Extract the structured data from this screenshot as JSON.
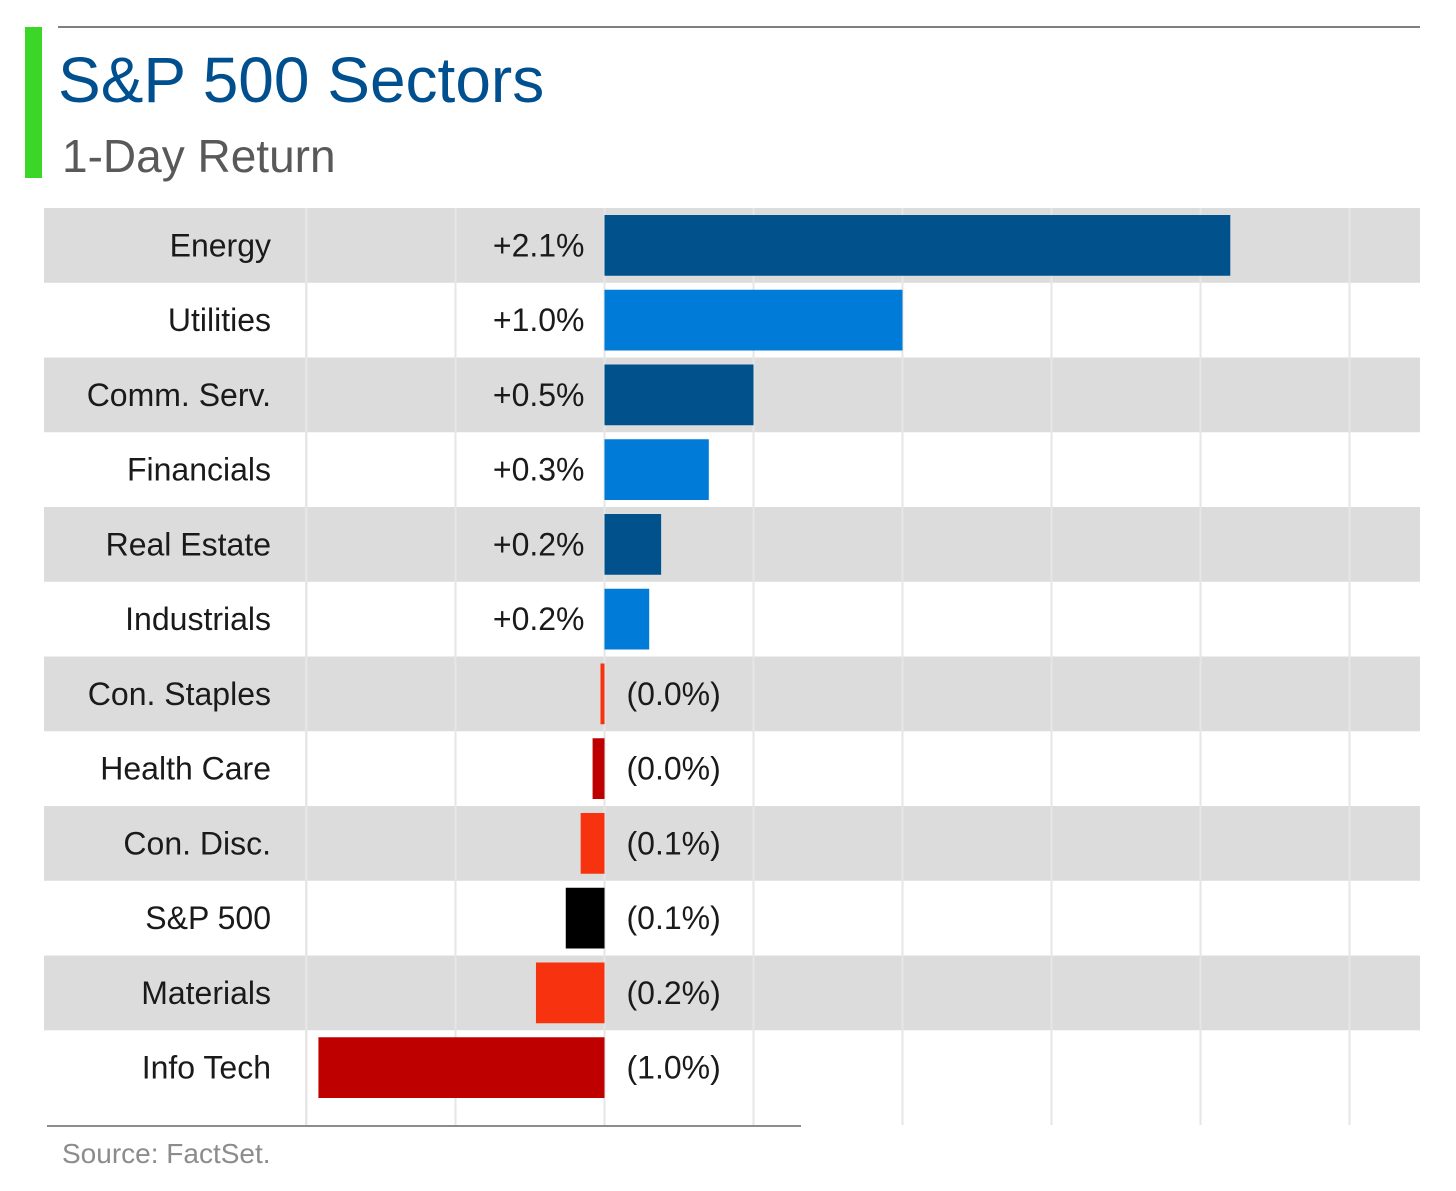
{
  "header": {
    "title": "S&P 500 Sectors",
    "subtitle": "1-Day Return"
  },
  "footer": {
    "source": "Source: FactSet."
  },
  "colors": {
    "accent": "#3bd627",
    "title": "#004f8f",
    "subtitle": "#595959",
    "band": "#dcdcdc",
    "grid": "#e4e4e4",
    "dark_blue": "#00518c",
    "light_blue": "#007bd8",
    "dark_red": "#bf0000",
    "orange_red": "#f6320f",
    "black": "#000000"
  },
  "chart_data": {
    "type": "bar",
    "orientation": "horizontal",
    "title": "S&P 500 Sectors",
    "subtitle": "1-Day Return",
    "categories": [
      "Energy",
      "Utilities",
      "Comm. Serv.",
      "Financials",
      "Real Estate",
      "Industrials",
      "Con. Staples",
      "Health Care",
      "Con. Disc.",
      "S&P 500",
      "Materials",
      "Info Tech"
    ],
    "values": [
      2.1,
      1.0,
      0.5,
      0.35,
      0.19,
      0.15,
      -0.01,
      -0.04,
      -0.08,
      -0.13,
      -0.23,
      -0.96
    ],
    "labels": [
      "+2.1%",
      "+1.0%",
      "+0.5%",
      "+0.3%",
      "+0.2%",
      "+0.2%",
      "(0.0%)",
      "(0.0%)",
      "(0.1%)",
      "(0.1%)",
      "(0.2%)",
      "(1.0%)"
    ],
    "bar_colors": [
      "#00518c",
      "#007bd8",
      "#00518c",
      "#007bd8",
      "#00518c",
      "#007bd8",
      "#f6320f",
      "#bf0000",
      "#f6320f",
      "#000000",
      "#f6320f",
      "#bf0000"
    ],
    "xlim": [
      -1.0,
      2.75
    ],
    "gridlines": [
      -1.0,
      -0.5,
      0.0,
      0.5,
      1.0,
      1.5,
      2.0,
      2.5
    ],
    "unit": "%",
    "grid": true,
    "legend": "none"
  }
}
